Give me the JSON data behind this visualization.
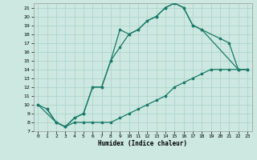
{
  "xlabel": "Humidex (Indice chaleur)",
  "ylabel": "",
  "line_color": "#1a7a6a",
  "bg_color": "#cce8e0",
  "grid_color": "#b0d4cc",
  "xlim": [
    -0.5,
    23.5
  ],
  "ylim": [
    7,
    21.5
  ],
  "xticks": [
    0,
    1,
    2,
    3,
    4,
    5,
    6,
    7,
    8,
    9,
    10,
    11,
    12,
    13,
    14,
    15,
    16,
    17,
    18,
    19,
    20,
    21,
    22,
    23
  ],
  "yticks": [
    7,
    8,
    9,
    10,
    11,
    12,
    13,
    14,
    15,
    16,
    17,
    18,
    19,
    20,
    21
  ],
  "line1_x": [
    0,
    1,
    2,
    3,
    4,
    5,
    6,
    7,
    8,
    9,
    10,
    11,
    12,
    13,
    14,
    15,
    16,
    17,
    18,
    22,
    23
  ],
  "line1_y": [
    10,
    9.5,
    8,
    7.5,
    8.5,
    9,
    12,
    12,
    15,
    18.5,
    18,
    18.5,
    19.5,
    20,
    21,
    21.5,
    21,
    19,
    18.5,
    14,
    14
  ],
  "line2_x": [
    0,
    2,
    3,
    4,
    5,
    6,
    7,
    8,
    9,
    10,
    11,
    12,
    13,
    14,
    15,
    16,
    17,
    18,
    20,
    21,
    22,
    23
  ],
  "line2_y": [
    10,
    8,
    7.5,
    8.5,
    9,
    12,
    12,
    15,
    16.5,
    18,
    18.5,
    19.5,
    20,
    21,
    21.5,
    21,
    19,
    18.5,
    17.5,
    17,
    14,
    14
  ],
  "line3_x": [
    1,
    2,
    3,
    4,
    5,
    6,
    7,
    8,
    9,
    10,
    11,
    12,
    13,
    14,
    15,
    16,
    17,
    18,
    19,
    20,
    21,
    22,
    23
  ],
  "line3_y": [
    9.5,
    8,
    7.5,
    8,
    8,
    8,
    8,
    8,
    8.5,
    9,
    9.5,
    10,
    10.5,
    11,
    12,
    12.5,
    13,
    13.5,
    14,
    14,
    14,
    14,
    14
  ]
}
